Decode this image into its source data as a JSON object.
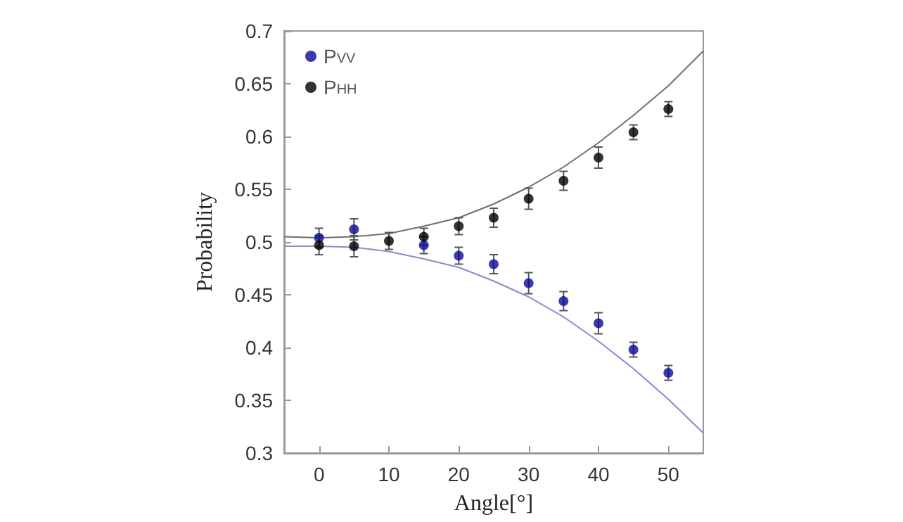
{
  "chart_data": {
    "type": "scatter",
    "xlabel": "Angle[°]",
    "ylabel": "Probability",
    "xlim": [
      -5,
      55
    ],
    "xticks": [
      0,
      10,
      20,
      30,
      40,
      50
    ],
    "ylim": [
      0.3,
      0.7
    ],
    "yticks": [
      0.3,
      0.35,
      0.4,
      0.45,
      0.5,
      0.55,
      0.6,
      0.65,
      0.7
    ],
    "x": [
      0,
      5,
      10,
      15,
      20,
      25,
      30,
      35,
      40,
      45,
      50
    ],
    "legend": "top left",
    "marker": "circle",
    "grid": false,
    "series": [
      {
        "name": "P$_{VV}$",
        "color": "#0a0a9a",
        "values": [
          0.504,
          0.512,
          null,
          0.497,
          0.487,
          0.479,
          0.461,
          0.444,
          0.423,
          0.398,
          0.376
        ],
        "errors": [
          0.009,
          0.01,
          null,
          0.008,
          0.008,
          0.009,
          0.01,
          0.009,
          0.01,
          0.007,
          0.007
        ]
      },
      {
        "name": "P$_{HH}$",
        "color": "#000000",
        "values": [
          0.497,
          0.496,
          0.501,
          0.505,
          0.515,
          0.523,
          0.541,
          0.558,
          0.58,
          0.604,
          0.626
        ],
        "errors": [
          0.009,
          0.01,
          0.008,
          0.008,
          0.008,
          0.009,
          0.01,
          0.009,
          0.01,
          0.007,
          0.007
        ]
      },
      {
        "type": "line",
        "color": "#8a8ad0",
        "marker": "none",
        "x": [
          -5,
          0,
          5,
          10,
          15,
          20,
          25,
          30,
          35,
          40,
          45,
          50,
          55
        ],
        "values": [
          0.496,
          0.496,
          0.495,
          0.491,
          0.484,
          0.476,
          0.463,
          0.448,
          0.429,
          0.406,
          0.38,
          0.351,
          0.319
        ]
      },
      {
        "type": "line",
        "color": "#707070",
        "marker": "none",
        "x": [
          -5,
          0,
          5,
          10,
          15,
          20,
          25,
          30,
          35,
          40,
          45,
          50,
          55
        ],
        "values": [
          0.505,
          0.504,
          0.505,
          0.508,
          0.515,
          0.523,
          0.536,
          0.552,
          0.571,
          0.594,
          0.62,
          0.648,
          0.681
        ]
      }
    ]
  }
}
